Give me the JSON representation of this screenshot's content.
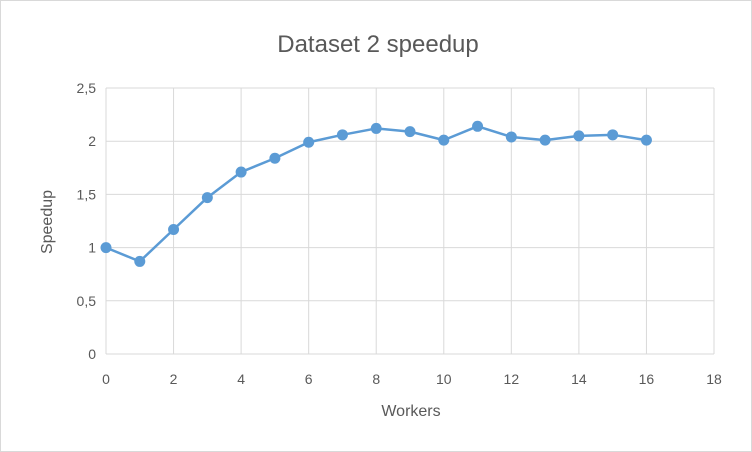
{
  "chart_data": {
    "type": "scatter",
    "title": "Dataset 2 speedup",
    "xlabel": "Workers",
    "ylabel": "Speedup",
    "xlim": [
      0,
      18
    ],
    "ylim": [
      0,
      2.5
    ],
    "xticks": [
      0,
      2,
      4,
      6,
      8,
      10,
      12,
      14,
      16,
      18
    ],
    "xtick_labels": [
      "0",
      "2",
      "4",
      "6",
      "8",
      "10",
      "12",
      "14",
      "16",
      "18"
    ],
    "yticks": [
      0,
      0.5,
      1,
      1.5,
      2,
      2.5
    ],
    "ytick_labels": [
      "0",
      "0,5",
      "1",
      "1,5",
      "2",
      "2,5"
    ],
    "grid": true,
    "legend": "none",
    "lines_and_markers": true,
    "series": [
      {
        "color": "#5b9bd5",
        "x": [
          0,
          1,
          2,
          3,
          4,
          5,
          6,
          7,
          8,
          9,
          10,
          11,
          12,
          13,
          14,
          15,
          16
        ],
        "y": [
          1.0,
          0.87,
          1.17,
          1.47,
          1.71,
          1.84,
          1.99,
          2.06,
          2.12,
          2.09,
          2.01,
          2.14,
          2.04,
          2.01,
          2.05,
          2.06,
          2.01
        ]
      }
    ],
    "gridline_color": "#d9d9d9"
  }
}
